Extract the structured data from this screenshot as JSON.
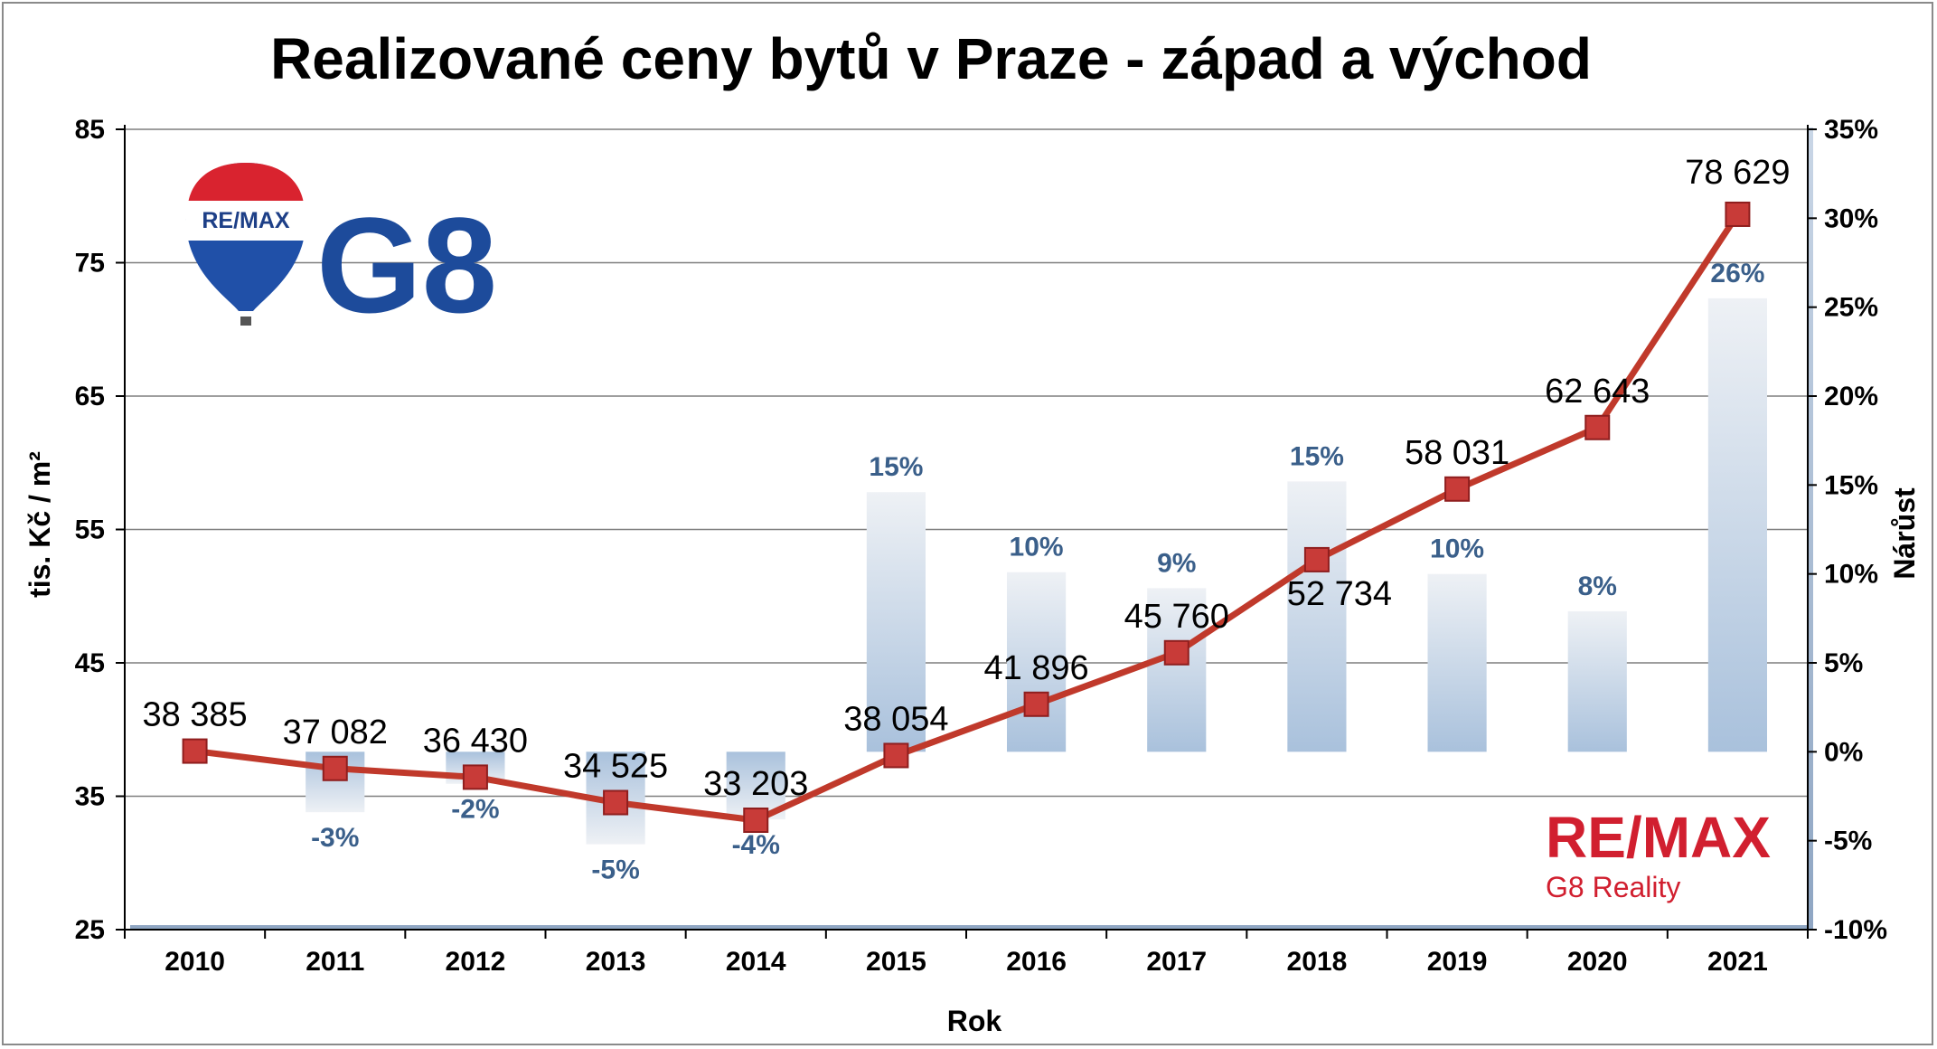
{
  "chart_data": {
    "type": "bar+line",
    "title": "Realizované ceny bytů v Praze - západ a východ",
    "xlabel": "Rok",
    "ylabel_left": "tis. Kč / m²",
    "ylabel_right": "Nárůst",
    "categories": [
      "2010",
      "2011",
      "2012",
      "2013",
      "2014",
      "2015",
      "2016",
      "2017",
      "2018",
      "2019",
      "2020",
      "2021"
    ],
    "ylim_left": [
      25,
      85
    ],
    "yticks_left": [
      "25",
      "35",
      "45",
      "55",
      "65",
      "75",
      "85"
    ],
    "ylim_right": [
      -10,
      35
    ],
    "yticks_right": [
      "-10%",
      "-5%",
      "0%",
      "5%",
      "10%",
      "15%",
      "20%",
      "25%",
      "30%",
      "35%"
    ],
    "grid": true,
    "series": [
      {
        "name": "Nárůst",
        "type": "bar",
        "axis": "right",
        "values": [
          0,
          -3.4,
          -1.8,
          -5.2,
          -3.8,
          14.6,
          10.1,
          9.2,
          15.2,
          10.0,
          7.9,
          25.5
        ],
        "labels": [
          "",
          "-3%",
          "-2%",
          "-5%",
          "-4%",
          "15%",
          "10%",
          "9%",
          "15%",
          "10%",
          "8%",
          "26%"
        ]
      },
      {
        "name": "Realizované ceny",
        "type": "line",
        "axis": "left",
        "values": [
          38.385,
          37.082,
          36.43,
          34.525,
          33.203,
          38.054,
          41.896,
          45.76,
          52.734,
          58.031,
          62.643,
          78.629
        ],
        "labels": [
          "38 385",
          "37 082",
          "36 430",
          "34 525",
          "33 203",
          "38 054",
          "41 896",
          "45 760",
          "52 734",
          "58 031",
          "62 643",
          "78 629"
        ]
      }
    ],
    "colors": {
      "line": "#c0392b",
      "marker": "#c83b38",
      "bar_top": "#eef1f5",
      "bar_bottom": "#a9c1dc",
      "grid": "#808080",
      "pct_text": "#3a5f8a"
    }
  },
  "logo": {
    "balloon_text": "RE/MAX",
    "g8_text": "G8"
  },
  "brand": {
    "name": "RE/MAX",
    "subtitle": "G8 Reality"
  }
}
